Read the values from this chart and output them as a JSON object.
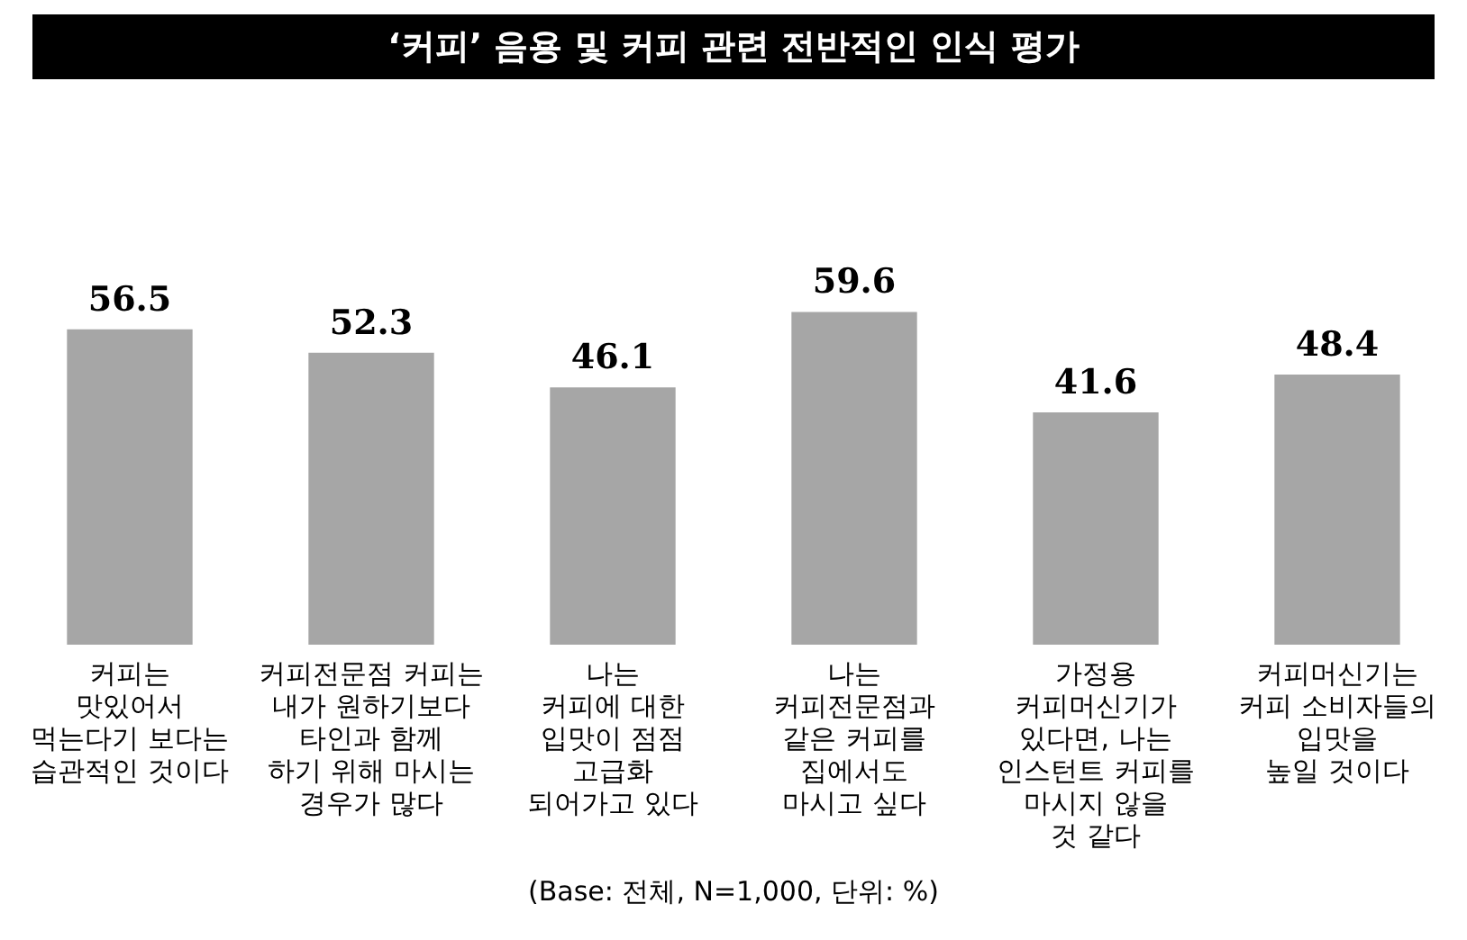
{
  "chart_data": {
    "type": "bar",
    "title": "‘커피’ 음용 및 커피 관련 전반적인 인식 평가",
    "categories": [
      "커피는\n맛있어서\n먹는다기 보다는\n습관적인 것이다",
      "커피전문점 커피는\n내가 원하기보다\n타인과 함께\n하기 위해 마시는\n경우가 많다",
      "나는\n커피에 대한\n입맛이 점점\n고급화\n되어가고 있다",
      "나는\n커피전문점과\n같은 커피를\n집에서도\n마시고 싶다",
      "가정용\n커피머신기가\n있다면, 나는\n인스턴트 커피를\n마시지 않을\n것 같다",
      "커피머신기는\n커피 소비자들의\n입맛을\n높일 것이다"
    ],
    "values": [
      56.5,
      52.3,
      46.1,
      59.6,
      41.6,
      48.4
    ],
    "color": "#a6a6a6",
    "data_labels": true,
    "grid": false,
    "legend": false,
    "annotations": [
      "(Base: 전체, N=1,000, 단위: %)"
    ]
  }
}
